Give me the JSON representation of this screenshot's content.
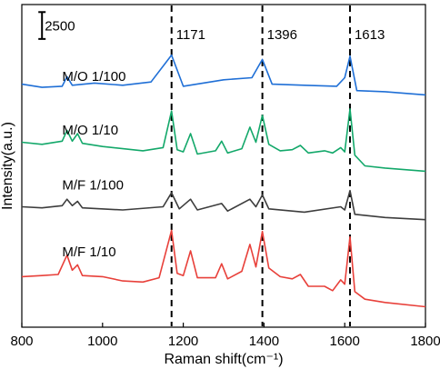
{
  "chart_data": {
    "type": "line",
    "title": "",
    "xlabel": "Raman shift(cm⁻¹)",
    "ylabel": "Intensity(a.u.)",
    "xlim": [
      800,
      1800
    ],
    "x_ticks": [
      "800",
      "1000",
      "1200",
      "1400",
      "1600",
      "1800"
    ],
    "y_ticks_visible": false,
    "scale_bar_label": "2500",
    "scale_bar_value": 2500,
    "reference_lines": [
      {
        "x": 1171,
        "label": "1171"
      },
      {
        "x": 1396,
        "label": "1396"
      },
      {
        "x": 1613,
        "label": "1613"
      }
    ],
    "series": [
      {
        "name": "M/O 1/100",
        "color": "#1f6fd6",
        "baseline": 22200,
        "points": [
          [
            800,
            22600
          ],
          [
            850,
            22300
          ],
          [
            900,
            22400
          ],
          [
            912,
            23300
          ],
          [
            925,
            22500
          ],
          [
            980,
            22700
          ],
          [
            1050,
            22500
          ],
          [
            1120,
            22800
          ],
          [
            1171,
            25300
          ],
          [
            1200,
            22400
          ],
          [
            1300,
            23000
          ],
          [
            1370,
            23200
          ],
          [
            1396,
            24900
          ],
          [
            1420,
            22600
          ],
          [
            1500,
            22500
          ],
          [
            1580,
            22400
          ],
          [
            1600,
            23200
          ],
          [
            1613,
            25200
          ],
          [
            1630,
            22000
          ],
          [
            1700,
            21900
          ],
          [
            1800,
            21600
          ]
        ]
      },
      {
        "name": "M/O 1/10",
        "color": "#13a86a",
        "baseline": 14800,
        "points": [
          [
            800,
            17200
          ],
          [
            850,
            17000
          ],
          [
            900,
            17300
          ],
          [
            912,
            18300
          ],
          [
            925,
            17300
          ],
          [
            938,
            18000
          ],
          [
            950,
            17100
          ],
          [
            1000,
            16800
          ],
          [
            1100,
            16400
          ],
          [
            1150,
            16700
          ],
          [
            1171,
            20100
          ],
          [
            1185,
            16500
          ],
          [
            1200,
            16300
          ],
          [
            1218,
            18000
          ],
          [
            1235,
            16100
          ],
          [
            1280,
            16400
          ],
          [
            1295,
            17300
          ],
          [
            1310,
            16200
          ],
          [
            1345,
            16600
          ],
          [
            1365,
            18600
          ],
          [
            1380,
            17200
          ],
          [
            1396,
            19700
          ],
          [
            1412,
            17000
          ],
          [
            1440,
            16400
          ],
          [
            1470,
            16500
          ],
          [
            1490,
            16900
          ],
          [
            1510,
            16200
          ],
          [
            1550,
            16400
          ],
          [
            1570,
            16200
          ],
          [
            1590,
            16700
          ],
          [
            1600,
            16300
          ],
          [
            1613,
            20300
          ],
          [
            1625,
            16000
          ],
          [
            1650,
            15000
          ],
          [
            1700,
            14800
          ],
          [
            1800,
            14500
          ]
        ]
      },
      {
        "name": "M/F 1/100",
        "color": "#3d3d3d",
        "baseline": 10100,
        "points": [
          [
            800,
            11200
          ],
          [
            850,
            11100
          ],
          [
            900,
            11300
          ],
          [
            912,
            11900
          ],
          [
            925,
            11300
          ],
          [
            938,
            11700
          ],
          [
            950,
            11100
          ],
          [
            1050,
            10900
          ],
          [
            1150,
            11200
          ],
          [
            1171,
            12500
          ],
          [
            1190,
            11000
          ],
          [
            1218,
            11900
          ],
          [
            1235,
            10900
          ],
          [
            1295,
            11500
          ],
          [
            1310,
            10800
          ],
          [
            1365,
            11900
          ],
          [
            1380,
            11200
          ],
          [
            1396,
            12300
          ],
          [
            1412,
            11000
          ],
          [
            1500,
            10700
          ],
          [
            1590,
            11200
          ],
          [
            1600,
            10900
          ],
          [
            1613,
            12700
          ],
          [
            1625,
            10500
          ],
          [
            1700,
            10200
          ],
          [
            1800,
            10000
          ]
        ]
      },
      {
        "name": "M/F 1/10",
        "color": "#e8403a",
        "baseline": 1700,
        "points": [
          [
            800,
            4700
          ],
          [
            850,
            4800
          ],
          [
            890,
            4900
          ],
          [
            912,
            6700
          ],
          [
            925,
            5300
          ],
          [
            938,
            5800
          ],
          [
            950,
            4800
          ],
          [
            1000,
            4700
          ],
          [
            1050,
            4300
          ],
          [
            1100,
            4200
          ],
          [
            1140,
            4600
          ],
          [
            1171,
            9000
          ],
          [
            1185,
            5000
          ],
          [
            1200,
            4800
          ],
          [
            1218,
            7100
          ],
          [
            1235,
            4600
          ],
          [
            1280,
            4600
          ],
          [
            1295,
            5900
          ],
          [
            1310,
            4500
          ],
          [
            1345,
            5200
          ],
          [
            1365,
            7700
          ],
          [
            1380,
            5600
          ],
          [
            1396,
            8900
          ],
          [
            1412,
            5500
          ],
          [
            1440,
            4700
          ],
          [
            1470,
            4500
          ],
          [
            1490,
            4900
          ],
          [
            1510,
            3800
          ],
          [
            1550,
            3800
          ],
          [
            1570,
            3400
          ],
          [
            1590,
            4400
          ],
          [
            1600,
            4000
          ],
          [
            1613,
            8400
          ],
          [
            1625,
            3300
          ],
          [
            1650,
            2600
          ],
          [
            1700,
            2300
          ],
          [
            1800,
            1900
          ]
        ]
      }
    ],
    "series_label_y": [
      22900,
      17900,
      12800,
      6600
    ],
    "ylim": [
      0,
      30000
    ]
  }
}
